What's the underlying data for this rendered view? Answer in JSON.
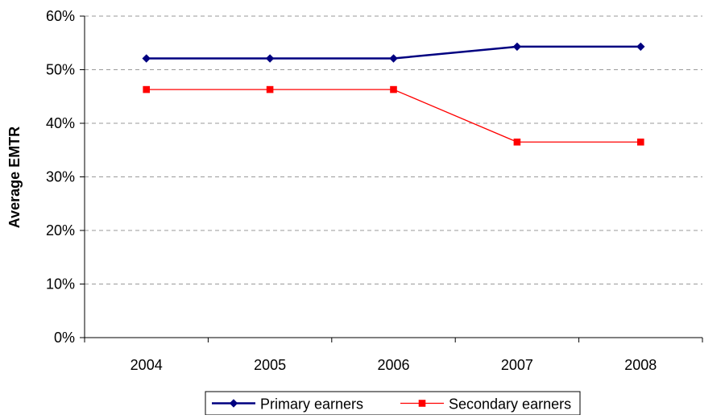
{
  "chart_data": {
    "type": "line",
    "categories": [
      "2004",
      "2005",
      "2006",
      "2007",
      "2008"
    ],
    "series": [
      {
        "name": "Primary earners",
        "values": [
          0.521,
          0.521,
          0.521,
          0.543,
          0.543
        ],
        "color": "#000080",
        "marker": "diamond"
      },
      {
        "name": "Secondary earners",
        "values": [
          0.463,
          0.463,
          0.463,
          0.365,
          0.365
        ],
        "color": "#ff0000",
        "marker": "square"
      }
    ],
    "title": "",
    "xlabel": "",
    "ylabel": "Average EMTR",
    "ylim": [
      0,
      0.6
    ],
    "yticks": [
      0,
      0.1,
      0.2,
      0.3,
      0.4,
      0.5,
      0.6
    ],
    "ytick_labels": [
      "0%",
      "10%",
      "20%",
      "30%",
      "40%",
      "50%",
      "60%"
    ],
    "grid": "horizontal dashed",
    "legend": "bottom"
  }
}
